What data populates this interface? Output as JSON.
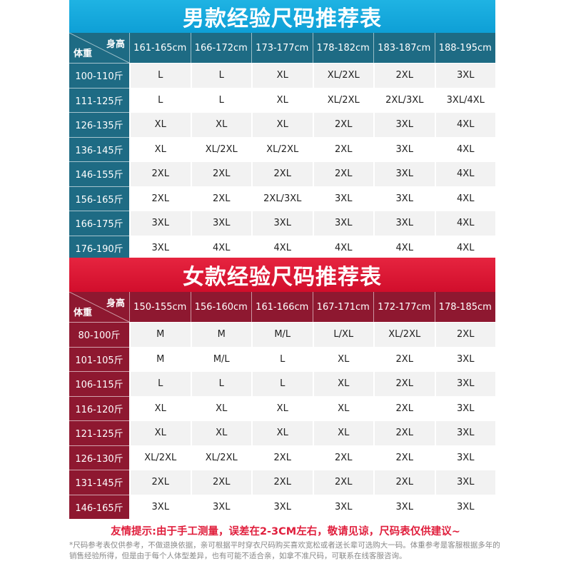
{
  "men": {
    "title": "男款经验尺码推荐表",
    "header_height": "身高",
    "header_weight": "体重",
    "heights": [
      "161-165cm",
      "166-172cm",
      "173-177cm",
      "178-182cm",
      "183-187cm",
      "188-195cm"
    ],
    "rows": [
      {
        "weight": "100-110斤",
        "sizes": [
          "L",
          "L",
          "XL",
          "XL/2XL",
          "2XL",
          "3XL"
        ]
      },
      {
        "weight": "111-125斤",
        "sizes": [
          "L",
          "L",
          "XL",
          "XL/2XL",
          "2XL/3XL",
          "3XL/4XL"
        ]
      },
      {
        "weight": "126-135斤",
        "sizes": [
          "XL",
          "XL",
          "XL",
          "2XL",
          "3XL",
          "4XL"
        ]
      },
      {
        "weight": "136-145斤",
        "sizes": [
          "XL",
          "XL/2XL",
          "XL/2XL",
          "2XL",
          "3XL",
          "4XL"
        ]
      },
      {
        "weight": "146-155斤",
        "sizes": [
          "2XL",
          "2XL",
          "2XL",
          "2XL",
          "3XL",
          "4XL"
        ]
      },
      {
        "weight": "156-165斤",
        "sizes": [
          "2XL",
          "2XL",
          "2XL/3XL",
          "3XL",
          "3XL",
          "4XL"
        ]
      },
      {
        "weight": "166-175斤",
        "sizes": [
          "3XL",
          "3XL",
          "3XL",
          "3XL",
          "3XL",
          "4XL"
        ]
      },
      {
        "weight": "176-190斤",
        "sizes": [
          "3XL",
          "4XL",
          "4XL",
          "4XL",
          "4XL",
          "4XL"
        ]
      }
    ]
  },
  "women": {
    "title": "女款经验尺码推荐表",
    "header_height": "身高",
    "header_weight": "体重",
    "heights": [
      "150-155cm",
      "156-160cm",
      "161-166cm",
      "167-171cm",
      "172-177cm",
      "178-185cm"
    ],
    "rows": [
      {
        "weight": "80-100斤",
        "sizes": [
          "M",
          "M",
          "M/L",
          "L/XL",
          "XL/2XL",
          "2XL"
        ]
      },
      {
        "weight": "101-105斤",
        "sizes": [
          "M",
          "M/L",
          "L",
          "XL",
          "2XL",
          "3XL"
        ]
      },
      {
        "weight": "106-115斤",
        "sizes": [
          "L",
          "L",
          "L",
          "XL",
          "2XL",
          "3XL"
        ]
      },
      {
        "weight": "116-120斤",
        "sizes": [
          "XL",
          "XL",
          "XL",
          "XL",
          "2XL",
          "3XL"
        ]
      },
      {
        "weight": "121-125斤",
        "sizes": [
          "XL",
          "XL",
          "XL",
          "XL",
          "2XL",
          "3XL"
        ]
      },
      {
        "weight": "126-130斤",
        "sizes": [
          "XL/2XL",
          "XL/2XL",
          "2XL",
          "2XL",
          "2XL",
          "3XL"
        ]
      },
      {
        "weight": "131-145斤",
        "sizes": [
          "2XL",
          "2XL",
          "2XL",
          "2XL",
          "2XL",
          "3XL"
        ]
      },
      {
        "weight": "146-165斤",
        "sizes": [
          "3XL",
          "3XL",
          "3XL",
          "3XL",
          "3XL",
          "3XL"
        ]
      }
    ]
  },
  "tip": "友情提示:由于手工测量，误差在2-3CM左右，敬请见谅，尺码表仅供建议~",
  "note": "*尺码参考表仅供参考，不做退换依据，亲可根据平时穿衣尺码购买喜欢宽松或者送长辈可选购大一码。体重参考是客服根据多年的销售经验所得，但是由于每个人体型差异，也有可能不适合亲，如拿不准尺码，可联系在线客服咨询。",
  "colors": {
    "men_title": "#0e9fd6",
    "men_header": "#1e6b84",
    "women_title": "#d10e2c",
    "women_header": "#8e1830",
    "tip": "#e01f3d",
    "row_alt": "#f2f2f2"
  }
}
